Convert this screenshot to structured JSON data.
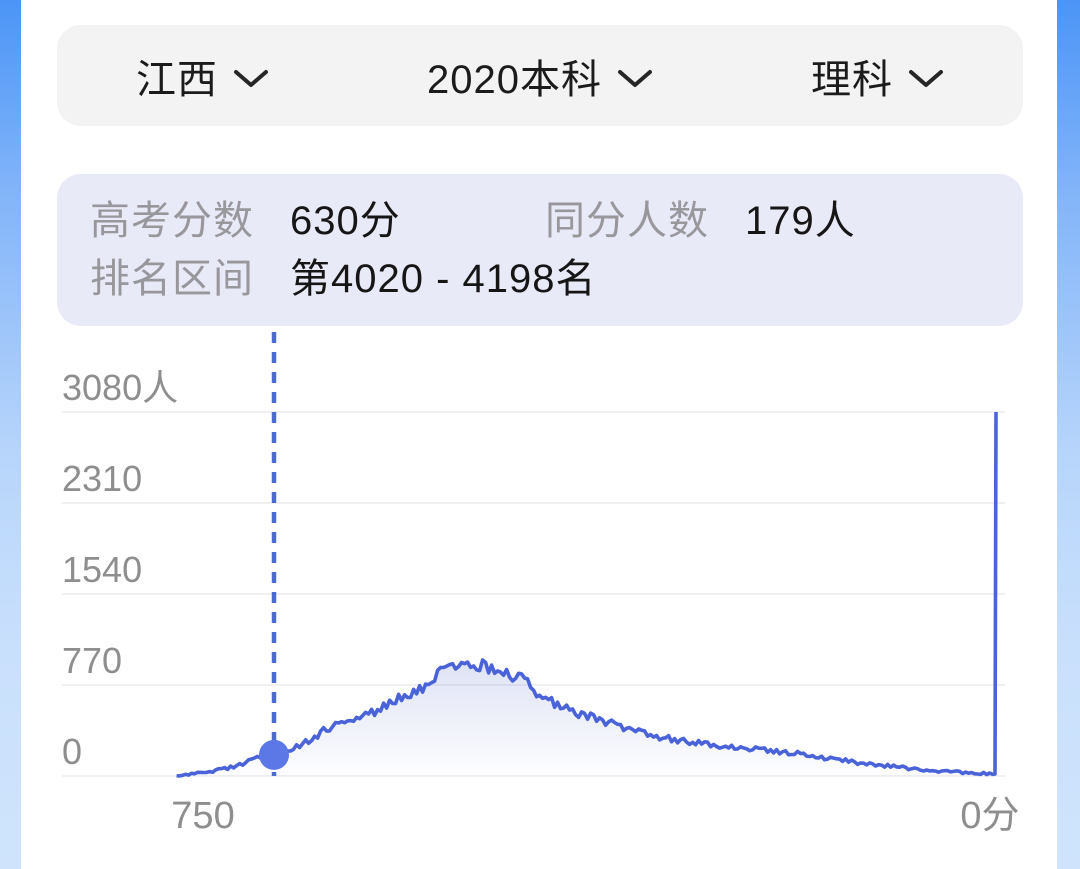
{
  "selectors": [
    {
      "label": "江西"
    },
    {
      "label": "2020本科"
    },
    {
      "label": "理科"
    }
  ],
  "info_panel": {
    "rows": [
      {
        "pairs": [
          {
            "label": "高考分数",
            "value": "630分"
          },
          {
            "label": "同分人数",
            "value": "179人"
          }
        ]
      },
      {
        "pairs": [
          {
            "label": "排名区间",
            "value": "第4020 - 4198名"
          }
        ]
      }
    ]
  },
  "chart_data": {
    "type": "area",
    "title": "",
    "xlabel": "",
    "ylabel": "",
    "x_axis": {
      "min": 0,
      "max": 750,
      "reversed": true,
      "label_left": "750",
      "label_right": "0分"
    },
    "y_axis": {
      "max": 3080,
      "ticks": [
        {
          "value": 3080,
          "label": "3080人"
        },
        {
          "value": 2310,
          "label": "2310"
        },
        {
          "value": 1540,
          "label": "1540"
        },
        {
          "value": 770,
          "label": "770"
        },
        {
          "value": 0,
          "label": "0"
        }
      ]
    },
    "grid": true,
    "legend": false,
    "marker": {
      "score": 630,
      "count": 179
    },
    "noise_amplitude": 5,
    "series": [
      {
        "name": "score-distribution",
        "points": [
          [
            715,
            8
          ],
          [
            710,
            10
          ],
          [
            705,
            13
          ],
          [
            700,
            18
          ],
          [
            695,
            24
          ],
          [
            690,
            30
          ],
          [
            685,
            38
          ],
          [
            680,
            48
          ],
          [
            675,
            58
          ],
          [
            670,
            70
          ],
          [
            665,
            82
          ],
          [
            660,
            96
          ],
          [
            655,
            112
          ],
          [
            650,
            128
          ],
          [
            645,
            148
          ],
          [
            640,
            160
          ],
          [
            635,
            170
          ],
          [
            630,
            179
          ],
          [
            625,
            196
          ],
          [
            620,
            215
          ],
          [
            615,
            230
          ],
          [
            610,
            245
          ],
          [
            605,
            272
          ],
          [
            600,
            300
          ],
          [
            595,
            330
          ],
          [
            590,
            360
          ],
          [
            585,
            390
          ],
          [
            580,
            415
          ],
          [
            575,
            432
          ],
          [
            570,
            450
          ],
          [
            565,
            465
          ],
          [
            560,
            480
          ],
          [
            555,
            498
          ],
          [
            550,
            515
          ],
          [
            545,
            532
          ],
          [
            540,
            550
          ],
          [
            535,
            575
          ],
          [
            530,
            600
          ],
          [
            525,
            628
          ],
          [
            520,
            655
          ],
          [
            515,
            678
          ],
          [
            510,
            700
          ],
          [
            505,
            730
          ],
          [
            500,
            760
          ],
          [
            495,
            795
          ],
          [
            490,
            830
          ],
          [
            485,
            868
          ],
          [
            480,
            900
          ],
          [
            475,
            920
          ],
          [
            470,
            935
          ],
          [
            465,
            945
          ],
          [
            460,
            950
          ],
          [
            455,
            948
          ],
          [
            450,
            940
          ],
          [
            445,
            925
          ],
          [
            440,
            910
          ],
          [
            435,
            895
          ],
          [
            430,
            880
          ],
          [
            425,
            862
          ],
          [
            420,
            845
          ],
          [
            415,
            820
          ],
          [
            410,
            795
          ],
          [
            405,
            750
          ],
          [
            400,
            700
          ],
          [
            395,
            672
          ],
          [
            390,
            645
          ],
          [
            385,
            618
          ],
          [
            380,
            590
          ],
          [
            375,
            568
          ],
          [
            370,
            545
          ],
          [
            365,
            528
          ],
          [
            360,
            510
          ],
          [
            355,
            502
          ],
          [
            350,
            495
          ],
          [
            345,
            478
          ],
          [
            340,
            460
          ],
          [
            335,
            440
          ],
          [
            330,
            420
          ],
          [
            325,
            405
          ],
          [
            320,
            390
          ],
          [
            315,
            378
          ],
          [
            310,
            365
          ],
          [
            305,
            355
          ],
          [
            300,
            345
          ],
          [
            295,
            335
          ],
          [
            290,
            325
          ],
          [
            285,
            315
          ],
          [
            280,
            305
          ],
          [
            275,
            298
          ],
          [
            270,
            290
          ],
          [
            265,
            284
          ],
          [
            260,
            278
          ],
          [
            255,
            273
          ],
          [
            250,
            268
          ],
          [
            245,
            262
          ],
          [
            240,
            255
          ],
          [
            235,
            249
          ],
          [
            230,
            243
          ],
          [
            225,
            239
          ],
          [
            220,
            235
          ],
          [
            215,
            232
          ],
          [
            210,
            228
          ],
          [
            205,
            223
          ],
          [
            200,
            218
          ],
          [
            195,
            212
          ],
          [
            190,
            205
          ],
          [
            185,
            200
          ],
          [
            180,
            196
          ],
          [
            175,
            192
          ],
          [
            170,
            188
          ],
          [
            165,
            179
          ],
          [
            160,
            170
          ],
          [
            155,
            162
          ],
          [
            150,
            155
          ],
          [
            145,
            148
          ],
          [
            140,
            140
          ],
          [
            135,
            134
          ],
          [
            130,
            128
          ],
          [
            125,
            120
          ],
          [
            120,
            112
          ],
          [
            115,
            105
          ],
          [
            110,
            98
          ],
          [
            105,
            94
          ],
          [
            100,
            90
          ],
          [
            95,
            85
          ],
          [
            90,
            80
          ],
          [
            85,
            75
          ],
          [
            80,
            70
          ],
          [
            75,
            65
          ],
          [
            70,
            60
          ],
          [
            65,
            55
          ],
          [
            60,
            50
          ],
          [
            55,
            46
          ],
          [
            50,
            42
          ],
          [
            45,
            38
          ],
          [
            40,
            35
          ],
          [
            35,
            32
          ],
          [
            30,
            30
          ],
          [
            25,
            27
          ],
          [
            20,
            24
          ],
          [
            15,
            22
          ],
          [
            10,
            20
          ],
          [
            5,
            18
          ],
          [
            2,
            16
          ],
          [
            1,
            15
          ],
          [
            0,
            3080
          ]
        ]
      }
    ],
    "colors": {
      "line": "#4a63d8",
      "marker": "#5b78e6",
      "dashed_line": "#4b6ccc",
      "fill_top": "rgba(95,115,205,0.22)",
      "fill_bottom": "rgba(95,115,205,0.01)",
      "grid": "#f0f0f2",
      "axis_text": "#8e8e8e"
    }
  }
}
